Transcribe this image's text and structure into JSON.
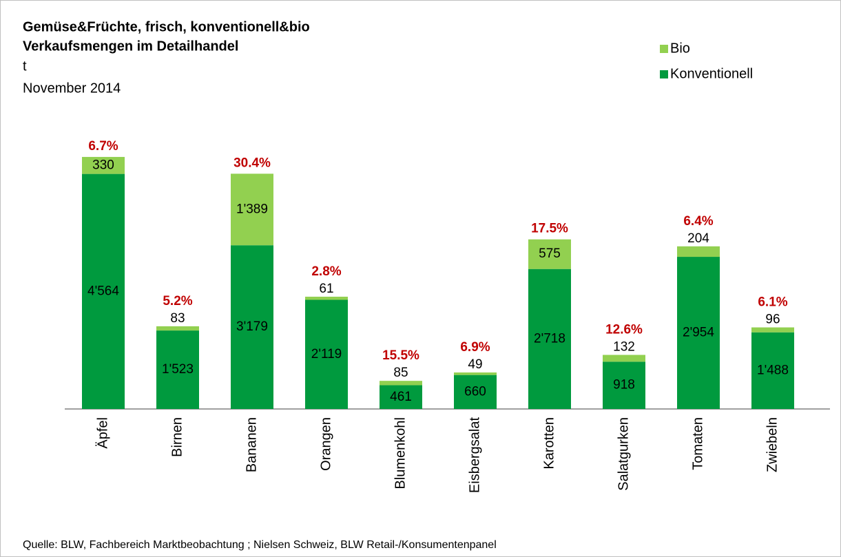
{
  "chart_data": {
    "type": "stacked_bar",
    "title": "Gemüse&Früchte, frisch, konventionell&bio",
    "subtitle": "Verkaufsmengen im Detailhandel",
    "unit": "t",
    "period": "November 2014",
    "source": "Quelle: BLW,  Fachbereich Marktbeobachtung ; Nielsen Schweiz, BLW Retail-/Konsumentenpanel",
    "categories": [
      "Äpfel",
      "Birnen",
      "Bananen",
      "Orangen",
      "Blumenkohl",
      "Eisbergsalat",
      "Karotten",
      "Salatgurken",
      "Tomaten",
      "Zwiebeln"
    ],
    "series": [
      {
        "name": "Konventionell",
        "color": "#009a3e",
        "values": [
          4564,
          1523,
          3179,
          2119,
          461,
          660,
          2718,
          918,
          2954,
          1488
        ],
        "value_labels": [
          "4'564",
          "1'523",
          "3'179",
          "2'119",
          "461",
          "660",
          "2'718",
          "918",
          "2'954",
          "1'488"
        ]
      },
      {
        "name": "Bio",
        "color": "#92d050",
        "values": [
          330,
          83,
          1389,
          61,
          85,
          49,
          575,
          132,
          204,
          96
        ],
        "value_labels": [
          "330",
          "83",
          "1'389",
          "61",
          "85",
          "49",
          "575",
          "132",
          "204",
          "96"
        ]
      }
    ],
    "bio_share": {
      "color": "#c00000",
      "values": [
        6.7,
        5.2,
        30.4,
        2.8,
        15.5,
        6.9,
        17.5,
        12.6,
        6.4,
        6.1
      ],
      "value_labels": [
        "6.7%",
        "5.2%",
        "30.4%",
        "2.8%",
        "15.5%",
        "6.9%",
        "17.5%",
        "12.6%",
        "6.4%",
        "6.1%"
      ]
    },
    "ylim": [
      0,
      5000
    ],
    "legend": "top-right"
  }
}
